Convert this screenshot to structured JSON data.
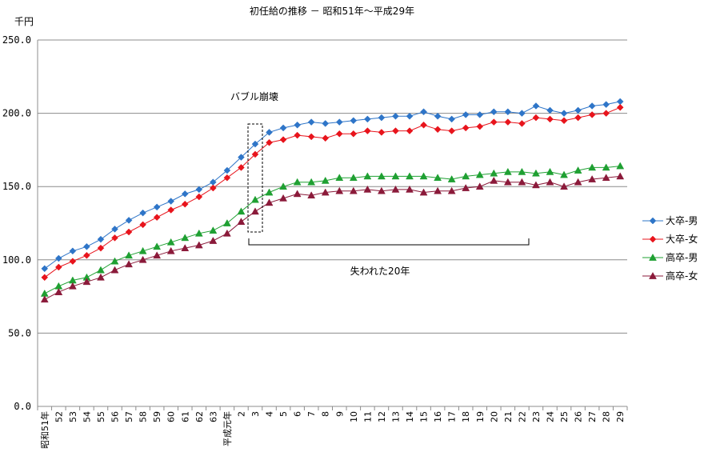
{
  "chart_data": {
    "type": "line",
    "title": "初任給の推移 － 昭和51年～平成29年",
    "ylabel": "千円",
    "xlabel": "",
    "ylim": [
      0,
      250
    ],
    "yticks": [
      "0.0",
      "50.0",
      "100.0",
      "150.0",
      "200.0",
      "250.0"
    ],
    "grid": true,
    "legend_position": "right",
    "categories": [
      "昭和51年",
      "52",
      "53",
      "54",
      "55",
      "56",
      "57",
      "58",
      "59",
      "60",
      "61",
      "62",
      "63",
      "平成元年",
      "2",
      "3",
      "4",
      "5",
      "6",
      "7",
      "8",
      "9",
      "10",
      "11",
      "12",
      "13",
      "14",
      "15",
      "16",
      "17",
      "18",
      "19",
      "20",
      "21",
      "22",
      "23",
      "24",
      "25",
      "26",
      "27",
      "28",
      "29"
    ],
    "series": [
      {
        "name": "大卒-男",
        "color": "#2e75c8",
        "marker": "diamond",
        "values": [
          94,
          101,
          106,
          109,
          114,
          121,
          127,
          132,
          136,
          140,
          145,
          148,
          153,
          161,
          170,
          179,
          187,
          190,
          192,
          194,
          193,
          194,
          195,
          196,
          197,
          198,
          198,
          201,
          198,
          196,
          199,
          199,
          201,
          201,
          200,
          205,
          202,
          200,
          202,
          205,
          206,
          208
        ]
      },
      {
        "name": "大卒-女",
        "color": "#e8141c",
        "marker": "diamond",
        "values": [
          88,
          95,
          99,
          103,
          108,
          115,
          119,
          124,
          129,
          134,
          138,
          143,
          149,
          156,
          163,
          172,
          180,
          182,
          185,
          184,
          183,
          186,
          186,
          188,
          187,
          188,
          188,
          192,
          189,
          188,
          190,
          191,
          194,
          194,
          193,
          197,
          196,
          195,
          197,
          199,
          200,
          204
        ]
      },
      {
        "name": "高卒-男",
        "color": "#1fa032",
        "marker": "triangle",
        "values": [
          77,
          82,
          86,
          88,
          93,
          99,
          103,
          106,
          109,
          112,
          115,
          118,
          120,
          125,
          133,
          141,
          146,
          150,
          153,
          153,
          154,
          156,
          156,
          157,
          157,
          157,
          157,
          157,
          156,
          155,
          157,
          158,
          159,
          160,
          160,
          159,
          160,
          158,
          161,
          163,
          163,
          164
        ]
      },
      {
        "name": "高卒-女",
        "color": "#8b1a3a",
        "marker": "triangle",
        "values": [
          73,
          78,
          82,
          85,
          88,
          93,
          97,
          100,
          103,
          106,
          108,
          110,
          113,
          118,
          126,
          133,
          139,
          142,
          145,
          144,
          146,
          147,
          147,
          148,
          147,
          148,
          148,
          146,
          147,
          147,
          149,
          150,
          154,
          153,
          153,
          151,
          153,
          150,
          153,
          155,
          156,
          157
        ]
      }
    ],
    "annotations": [
      {
        "text": "バブル崩壊"
      },
      {
        "text": "失われた20年"
      }
    ]
  }
}
